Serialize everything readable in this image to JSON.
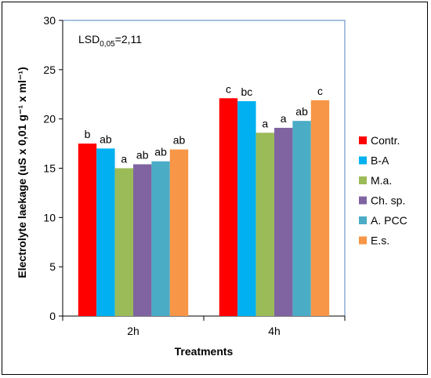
{
  "chart_data": {
    "type": "bar",
    "categories": [
      "2h",
      "4h"
    ],
    "series": [
      {
        "name": "Contr.",
        "color": "#ff0000",
        "values": [
          17.5,
          22.1
        ],
        "labels": [
          "b",
          "c"
        ]
      },
      {
        "name": "B-A",
        "color": "#00b0f0",
        "values": [
          17.0,
          21.8
        ],
        "labels": [
          "ab",
          "bc"
        ]
      },
      {
        "name": "M.a.",
        "color": "#9bbb59",
        "values": [
          15.0,
          18.6
        ],
        "labels": [
          "a",
          "a"
        ]
      },
      {
        "name": "Ch. sp.",
        "color": "#8064a2",
        "values": [
          15.4,
          19.1
        ],
        "labels": [
          "ab",
          "a"
        ]
      },
      {
        "name": "A. PCC",
        "color": "#4bacc6",
        "values": [
          15.7,
          19.8
        ],
        "labels": [
          "ab",
          "ab"
        ]
      },
      {
        "name": "E.s.",
        "color": "#f79646",
        "values": [
          16.9,
          21.9
        ],
        "labels": [
          "ab",
          "c"
        ]
      }
    ],
    "xlabel": "Treatments",
    "ylabel": "Electrolyte laekage (uS x 0,01 g⁻¹ x ml⁻¹)",
    "ylim": [
      0,
      30
    ],
    "yticks": [
      0,
      5,
      10,
      15,
      20,
      25,
      30
    ],
    "annotation": {
      "prefix": "LSD",
      "subscript": "0,05",
      "suffix": "=2,11"
    },
    "grid": false,
    "legend_position": "right"
  }
}
